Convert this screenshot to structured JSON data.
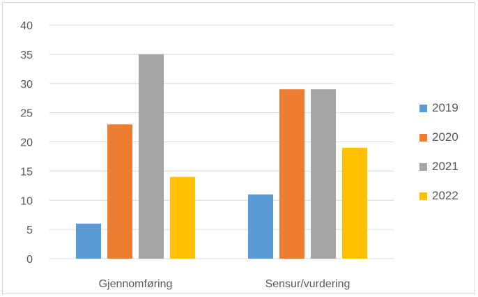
{
  "chart_data": {
    "type": "bar",
    "categories": [
      "Gjennomføring",
      "Sensur/vurdering"
    ],
    "series": [
      {
        "name": "2019",
        "values": [
          6,
          11
        ],
        "color": "#5b9bd5"
      },
      {
        "name": "2020",
        "values": [
          23,
          29
        ],
        "color": "#ed7d31"
      },
      {
        "name": "2021",
        "values": [
          35,
          29
        ],
        "color": "#a5a5a5"
      },
      {
        "name": "2022",
        "values": [
          14,
          19
        ],
        "color": "#ffc000"
      }
    ],
    "ylim": [
      0,
      40
    ],
    "yticks": [
      "0",
      "5",
      "10",
      "15",
      "20",
      "25",
      "30",
      "35",
      "40"
    ],
    "grid": true,
    "legend": "right",
    "gridline_color": "#d9d9d9"
  }
}
